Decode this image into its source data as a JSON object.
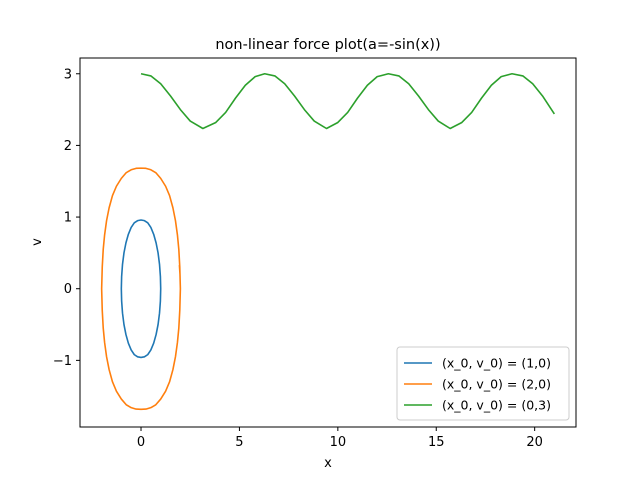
{
  "chart_data": {
    "type": "line",
    "title": "non-linear force plot(a=-sin(x))",
    "xlabel": "x",
    "ylabel": "v",
    "xlim": [
      -3.1,
      22.1
    ],
    "ylim": [
      -1.93,
      3.22
    ],
    "xticks": [
      0,
      5,
      10,
      15,
      20
    ],
    "yticks": [
      -1,
      0,
      1,
      2,
      3
    ],
    "xtick_labels": [
      "0",
      "5",
      "10",
      "15",
      "20"
    ],
    "ytick_labels": [
      "−1",
      "0",
      "1",
      "2",
      "3"
    ],
    "grid": false,
    "legend_position": "lower-right",
    "series": [
      {
        "name": "(x_0, v_0) = (1,0)",
        "color": "#1f77b4",
        "points": [
          [
            1.0,
            0.0
          ],
          [
            0.985,
            0.17
          ],
          [
            0.94,
            0.34
          ],
          [
            0.866,
            0.5
          ],
          [
            0.766,
            0.64
          ],
          [
            0.643,
            0.76
          ],
          [
            0.5,
            0.855
          ],
          [
            0.342,
            0.92
          ],
          [
            0.174,
            0.95
          ],
          [
            0.0,
            0.959
          ],
          [
            -0.174,
            0.95
          ],
          [
            -0.342,
            0.92
          ],
          [
            -0.5,
            0.855
          ],
          [
            -0.643,
            0.76
          ],
          [
            -0.766,
            0.64
          ],
          [
            -0.866,
            0.5
          ],
          [
            -0.94,
            0.34
          ],
          [
            -0.985,
            0.17
          ],
          [
            -1.0,
            0.0
          ],
          [
            -0.985,
            -0.17
          ],
          [
            -0.94,
            -0.34
          ],
          [
            -0.866,
            -0.5
          ],
          [
            -0.766,
            -0.64
          ],
          [
            -0.643,
            -0.76
          ],
          [
            -0.5,
            -0.855
          ],
          [
            -0.342,
            -0.92
          ],
          [
            -0.174,
            -0.95
          ],
          [
            0.0,
            -0.959
          ],
          [
            0.174,
            -0.95
          ],
          [
            0.342,
            -0.92
          ],
          [
            0.5,
            -0.855
          ],
          [
            0.643,
            -0.76
          ],
          [
            0.766,
            -0.64
          ],
          [
            0.866,
            -0.5
          ],
          [
            0.94,
            -0.34
          ],
          [
            0.985,
            -0.17
          ],
          [
            1.0,
            0.0
          ]
        ]
      },
      {
        "name": "(x_0, v_0) = (2,0)",
        "color": "#ff7f0e",
        "points": [
          [
            2.0,
            0.0
          ],
          [
            1.97,
            0.3
          ],
          [
            1.92,
            0.55
          ],
          [
            1.85,
            0.75
          ],
          [
            1.75,
            0.95
          ],
          [
            1.62,
            1.13
          ],
          [
            1.45,
            1.3
          ],
          [
            1.25,
            1.43
          ],
          [
            1.0,
            1.54
          ],
          [
            0.75,
            1.62
          ],
          [
            0.5,
            1.66
          ],
          [
            0.25,
            1.68
          ],
          [
            0.0,
            1.683
          ],
          [
            -0.25,
            1.68
          ],
          [
            -0.5,
            1.66
          ],
          [
            -0.75,
            1.62
          ],
          [
            -1.0,
            1.54
          ],
          [
            -1.25,
            1.43
          ],
          [
            -1.45,
            1.3
          ],
          [
            -1.62,
            1.13
          ],
          [
            -1.75,
            0.95
          ],
          [
            -1.85,
            0.75
          ],
          [
            -1.92,
            0.55
          ],
          [
            -1.97,
            0.3
          ],
          [
            -2.0,
            0.0
          ],
          [
            -1.97,
            -0.3
          ],
          [
            -1.92,
            -0.55
          ],
          [
            -1.85,
            -0.75
          ],
          [
            -1.75,
            -0.95
          ],
          [
            -1.62,
            -1.13
          ],
          [
            -1.45,
            -1.3
          ],
          [
            -1.25,
            -1.43
          ],
          [
            -1.0,
            -1.54
          ],
          [
            -0.75,
            -1.62
          ],
          [
            -0.5,
            -1.66
          ],
          [
            -0.25,
            -1.68
          ],
          [
            0.0,
            -1.683
          ],
          [
            0.25,
            -1.68
          ],
          [
            0.5,
            -1.66
          ],
          [
            0.75,
            -1.62
          ],
          [
            1.0,
            -1.54
          ],
          [
            1.25,
            -1.43
          ],
          [
            1.45,
            -1.3
          ],
          [
            1.62,
            -1.13
          ],
          [
            1.75,
            -0.95
          ],
          [
            1.85,
            -0.75
          ],
          [
            1.92,
            -0.55
          ],
          [
            1.97,
            -0.3
          ],
          [
            2.0,
            0.0
          ],
          [
            1.98,
            0.2
          ],
          [
            1.95,
            0.33
          ]
        ]
      },
      {
        "name": "(x_0, v_0) = (0,3)",
        "color": "#2ca02c",
        "points": [
          [
            0.0,
            3.0
          ],
          [
            0.5,
            2.97
          ],
          [
            1.0,
            2.86
          ],
          [
            1.5,
            2.69
          ],
          [
            2.0,
            2.5
          ],
          [
            2.5,
            2.34
          ],
          [
            3.142,
            2.236
          ],
          [
            3.8,
            2.32
          ],
          [
            4.3,
            2.46
          ],
          [
            4.8,
            2.66
          ],
          [
            5.3,
            2.84
          ],
          [
            5.8,
            2.96
          ],
          [
            6.283,
            3.0
          ],
          [
            6.8,
            2.97
          ],
          [
            7.3,
            2.86
          ],
          [
            7.8,
            2.69
          ],
          [
            8.3,
            2.5
          ],
          [
            8.8,
            2.34
          ],
          [
            9.425,
            2.236
          ],
          [
            10.0,
            2.32
          ],
          [
            10.5,
            2.46
          ],
          [
            11.0,
            2.66
          ],
          [
            11.5,
            2.84
          ],
          [
            12.0,
            2.96
          ],
          [
            12.566,
            3.0
          ],
          [
            13.1,
            2.97
          ],
          [
            13.6,
            2.86
          ],
          [
            14.1,
            2.69
          ],
          [
            14.6,
            2.5
          ],
          [
            15.1,
            2.34
          ],
          [
            15.708,
            2.236
          ],
          [
            16.3,
            2.32
          ],
          [
            16.8,
            2.46
          ],
          [
            17.3,
            2.66
          ],
          [
            17.8,
            2.84
          ],
          [
            18.3,
            2.96
          ],
          [
            18.85,
            3.0
          ],
          [
            19.4,
            2.97
          ],
          [
            19.9,
            2.86
          ],
          [
            20.4,
            2.69
          ],
          [
            21.0,
            2.44
          ]
        ]
      }
    ]
  }
}
